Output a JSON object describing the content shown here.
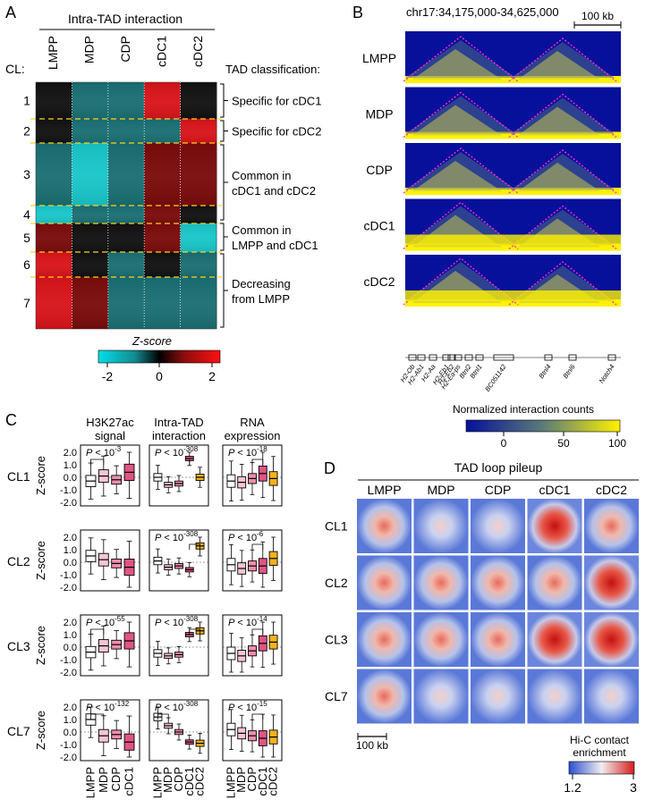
{
  "panels": {
    "A": "A",
    "B": "B",
    "C": "C",
    "D": "D"
  },
  "panelA": {
    "header": "Intra-TAD interaction",
    "cl_label": "CL:",
    "columns": [
      "LMPP",
      "MDP",
      "CDP",
      "cDC1",
      "cDC2"
    ],
    "clusters": [
      "1",
      "2",
      "3",
      "4",
      "5",
      "6",
      "7"
    ],
    "classification_title": "TAD classification:",
    "classes": [
      {
        "lines": [
          "Specific for cDC1"
        ]
      },
      {
        "lines": [
          "Specific for cDC2"
        ]
      },
      {
        "lines": [
          "Common in",
          "cDC1 and cDC2"
        ]
      },
      {
        "lines": [
          "Common in",
          "LMPP and cDC1"
        ]
      },
      {
        "lines": [
          "Decreasing",
          "from LMPP"
        ]
      }
    ],
    "zscore_title": "Z-score",
    "zscore_ticks": [
      "-2",
      "0",
      "2"
    ],
    "colors": {
      "cyan": "#19c6c9",
      "teal": "#1a6f73",
      "black": "#111111",
      "darkred": "#7a0b0b",
      "red": "#d8141a"
    }
  },
  "panelB": {
    "region": "chr17:34,175,000-34,625,000",
    "scale": "100 kb",
    "rows": [
      "LMPP",
      "MDP",
      "CDP",
      "cDC1",
      "cDC2"
    ],
    "genes": [
      "H2-Ob",
      "H2-Ab1",
      "H2-Aa",
      "H2-Eb1",
      "H2-Eb2",
      "H2-Ea-ps",
      "Btnl2",
      "Btnl1",
      "BC051142",
      "Btnl4",
      "Btnl6",
      "Notch4"
    ],
    "colorbar_title": "Normalized interaction counts",
    "colorbar_ticks": [
      "0",
      "50",
      "100"
    ],
    "colors": {
      "low": "#06109a",
      "high": "#fff200"
    }
  },
  "panelC": {
    "col_titles": [
      [
        "H3K27ac",
        "signal"
      ],
      [
        "Intra-TAD",
        "interaction"
      ],
      [
        "RNA",
        "expression"
      ]
    ],
    "rows": [
      "CL1",
      "CL2",
      "CL3",
      "CL7"
    ],
    "ylabel": "Z-score",
    "yticks": [
      "2.0",
      "1.0",
      "0.0",
      "-1.0",
      "-2.0"
    ],
    "xlabels_short": [
      "LMPP",
      "MDP",
      "CDP",
      "cDC1"
    ],
    "xlabels_full": [
      "LMPP",
      "MDP",
      "CDP",
      "cDC1",
      "cDC2"
    ],
    "pvalues": [
      [
        "P < 10^-3",
        "P < 10^-308",
        "P < 10^-18"
      ],
      [
        "",
        "P < 10^-308",
        "P < 10^-6"
      ],
      [
        "P < 10^-55",
        "P < 10^-308",
        "P < 10^-14"
      ],
      [
        "P < 10^-132",
        "P < 10^-308",
        "P < 10^-15"
      ]
    ],
    "colors": [
      "#ffffff",
      "#f7c6d2",
      "#ee8fab",
      "#e05583",
      "#f5b21a"
    ]
  },
  "panelD": {
    "title": "TAD loop pileup",
    "columns": [
      "LMPP",
      "MDP",
      "CDP",
      "cDC1",
      "cDC2"
    ],
    "rows": [
      "CL1",
      "CL2",
      "CL3",
      "CL7"
    ],
    "scale": "100 kb",
    "colorbar_title": [
      "Hi-C contact",
      "enrichment"
    ],
    "colorbar_ticks": [
      "1.2",
      "3"
    ],
    "colors": {
      "low": "#2b4fd1",
      "mid": "#f2efef",
      "high": "#d61e1e"
    }
  }
}
